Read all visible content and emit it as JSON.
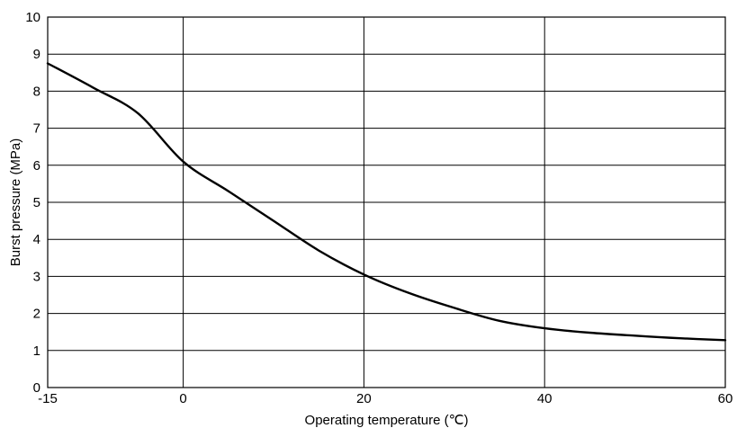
{
  "chart_data": {
    "type": "line",
    "xlabel": "Operating temperature (℃)",
    "ylabel": "Burst pressure (MPa)",
    "xlim": [
      -15,
      60
    ],
    "ylim": [
      0,
      10
    ],
    "x_ticks": [
      "-15",
      "0",
      "20",
      "40",
      "60"
    ],
    "y_ticks": [
      "0",
      "1",
      "2",
      "3",
      "4",
      "5",
      "6",
      "7",
      "8",
      "9",
      "10"
    ],
    "grid": true,
    "series": [
      {
        "x": [
          -15,
          -10,
          -5,
          0,
          5,
          10,
          15,
          20,
          25,
          30,
          35,
          40,
          45,
          50,
          55,
          60
        ],
        "values": [
          8.75,
          8.1,
          7.4,
          6.1,
          5.3,
          4.5,
          3.7,
          3.05,
          2.55,
          2.15,
          1.8,
          1.6,
          1.48,
          1.4,
          1.33,
          1.28
        ]
      }
    ]
  }
}
